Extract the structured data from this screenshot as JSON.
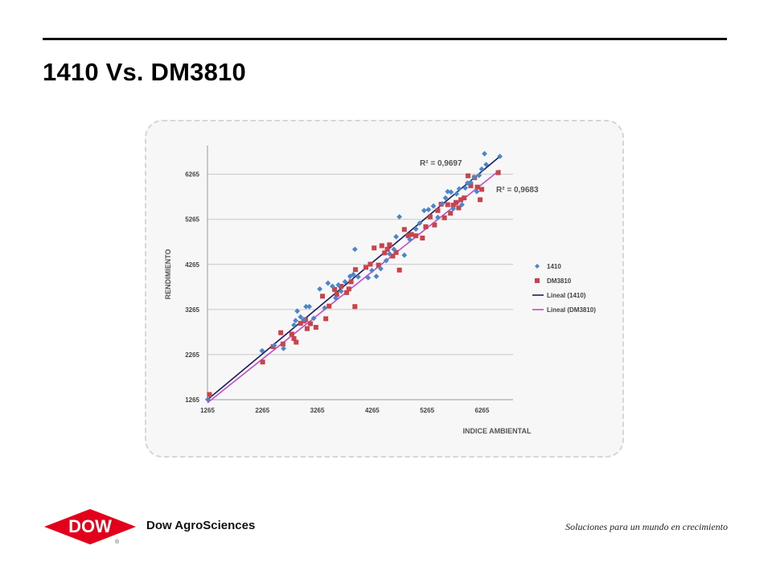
{
  "slide": {
    "title": "1410 Vs. DM3810",
    "company": "Dow AgroSciences",
    "logo_text": "DOW",
    "logo_mark": "®",
    "tagline": "Soluciones para un mundo en crecimiento"
  },
  "colors": {
    "series_1410": "#4a86c8",
    "series_dm3810": "#c8434a",
    "trend_1410": "#1c1c5e",
    "trend_dm3810": "#c04ec8",
    "grid": "#c8c8c8",
    "logo_red": "#e2001a"
  },
  "chart_data": {
    "type": "scatter",
    "xlabel": "INDICE AMBIENTAL",
    "ylabel": "RENDIMIENTO",
    "xlim": [
      1265,
      6830
    ],
    "ylim": [
      1265,
      6830
    ],
    "xticks": [
      1265,
      2265,
      3265,
      4265,
      5265,
      6265
    ],
    "yticks": [
      1265,
      2265,
      3265,
      4265,
      5265,
      6265
    ],
    "grid": "horizontal",
    "legend_position": "right",
    "annotations": [
      "R² = 0,9697",
      "R² = 0,9683"
    ],
    "series": [
      {
        "name": "1410",
        "marker": "diamond",
        "points": [
          [
            1270,
            1270
          ],
          [
            2260,
            2350
          ],
          [
            2480,
            2470
          ],
          [
            2650,
            2400
          ],
          [
            2840,
            2920
          ],
          [
            2870,
            3020
          ],
          [
            2900,
            3230
          ],
          [
            2960,
            3100
          ],
          [
            3020,
            3040
          ],
          [
            3060,
            3330
          ],
          [
            3120,
            3330
          ],
          [
            3200,
            3070
          ],
          [
            3310,
            3720
          ],
          [
            3400,
            3300
          ],
          [
            3460,
            3850
          ],
          [
            3540,
            3780
          ],
          [
            3600,
            3520
          ],
          [
            3650,
            3810
          ],
          [
            3700,
            3670
          ],
          [
            3770,
            3880
          ],
          [
            3860,
            4000
          ],
          [
            3920,
            4040
          ],
          [
            3950,
            4600
          ],
          [
            4010,
            3990
          ],
          [
            4190,
            3970
          ],
          [
            4260,
            4130
          ],
          [
            4340,
            4000
          ],
          [
            4420,
            4170
          ],
          [
            4520,
            4350
          ],
          [
            4580,
            4500
          ],
          [
            4660,
            4600
          ],
          [
            4700,
            4880
          ],
          [
            4760,
            5320
          ],
          [
            4850,
            4470
          ],
          [
            4950,
            4820
          ],
          [
            5060,
            5050
          ],
          [
            5130,
            5180
          ],
          [
            5210,
            5460
          ],
          [
            5290,
            5480
          ],
          [
            5380,
            5560
          ],
          [
            5460,
            5310
          ],
          [
            5540,
            5610
          ],
          [
            5600,
            5740
          ],
          [
            5640,
            5880
          ],
          [
            5700,
            5870
          ],
          [
            5740,
            5500
          ],
          [
            5800,
            5830
          ],
          [
            5850,
            5940
          ],
          [
            5900,
            5590
          ],
          [
            5960,
            5960
          ],
          [
            6000,
            6070
          ],
          [
            6060,
            6080
          ],
          [
            6120,
            6200
          ],
          [
            6170,
            5880
          ],
          [
            6210,
            6240
          ],
          [
            6260,
            6380
          ],
          [
            6310,
            6720
          ],
          [
            6340,
            6480
          ],
          [
            6590,
            6660
          ]
        ]
      },
      {
        "name": "DM3810",
        "marker": "square",
        "points": [
          [
            1300,
            1380
          ],
          [
            2270,
            2100
          ],
          [
            2460,
            2440
          ],
          [
            2600,
            2750
          ],
          [
            2640,
            2500
          ],
          [
            2800,
            2720
          ],
          [
            2840,
            2620
          ],
          [
            2880,
            2540
          ],
          [
            2960,
            2960
          ],
          [
            3020,
            3010
          ],
          [
            3050,
            3040
          ],
          [
            3080,
            2840
          ],
          [
            3140,
            2950
          ],
          [
            3240,
            2870
          ],
          [
            3360,
            3560
          ],
          [
            3420,
            3060
          ],
          [
            3480,
            3340
          ],
          [
            3580,
            3710
          ],
          [
            3620,
            3600
          ],
          [
            3700,
            3780
          ],
          [
            3800,
            3640
          ],
          [
            3840,
            3720
          ],
          [
            3880,
            3880
          ],
          [
            3950,
            3330
          ],
          [
            3960,
            4150
          ],
          [
            4150,
            4200
          ],
          [
            4230,
            4270
          ],
          [
            4300,
            4630
          ],
          [
            4380,
            4250
          ],
          [
            4440,
            4680
          ],
          [
            4490,
            4520
          ],
          [
            4540,
            4600
          ],
          [
            4580,
            4700
          ],
          [
            4640,
            4450
          ],
          [
            4700,
            4530
          ],
          [
            4760,
            4140
          ],
          [
            4850,
            5040
          ],
          [
            4920,
            4900
          ],
          [
            4980,
            4930
          ],
          [
            5060,
            4900
          ],
          [
            5180,
            4850
          ],
          [
            5240,
            5100
          ],
          [
            5320,
            5320
          ],
          [
            5400,
            5140
          ],
          [
            5460,
            5460
          ],
          [
            5520,
            5600
          ],
          [
            5580,
            5300
          ],
          [
            5640,
            5590
          ],
          [
            5690,
            5400
          ],
          [
            5740,
            5580
          ],
          [
            5790,
            5640
          ],
          [
            5840,
            5520
          ],
          [
            5880,
            5700
          ],
          [
            5940,
            5740
          ],
          [
            6010,
            6230
          ],
          [
            6060,
            6010
          ],
          [
            6130,
            6190
          ],
          [
            6180,
            5980
          ],
          [
            6230,
            5700
          ],
          [
            6260,
            5930
          ],
          [
            6560,
            6300
          ]
        ]
      },
      {
        "name": "Lineal (1410)",
        "type": "line",
        "points": [
          [
            1265,
            1265
          ],
          [
            6590,
            6660
          ]
        ]
      },
      {
        "name": "Lineal (DM3810)",
        "type": "line",
        "points": [
          [
            1265,
            1195
          ],
          [
            6590,
            6360
          ]
        ]
      }
    ]
  }
}
